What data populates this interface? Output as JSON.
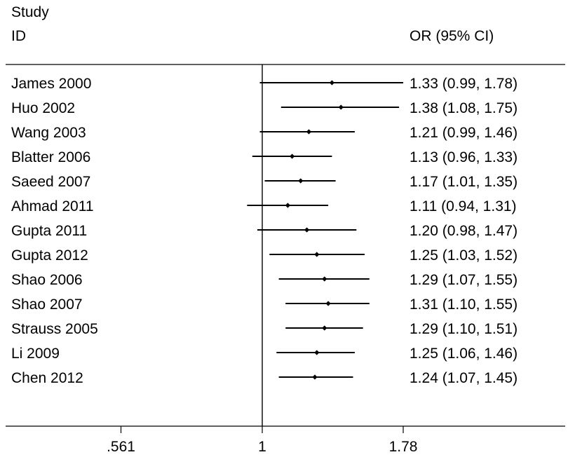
{
  "header": {
    "col1_line1": "Study",
    "col1_line2": "ID",
    "col2": "OR (95% CI)"
  },
  "chart_data": {
    "type": "forest",
    "x_scale": "log",
    "null_line": 1,
    "x_ticks": [
      0.561,
      1,
      1.78
    ],
    "x_tick_labels": [
      ".561",
      "1",
      "1.78"
    ],
    "studies": [
      {
        "id": "James 2000",
        "or": 1.33,
        "lo": 0.99,
        "hi": 1.78,
        "label": "1.33 (0.99, 1.78)"
      },
      {
        "id": "Huo 2002",
        "or": 1.38,
        "lo": 1.08,
        "hi": 1.75,
        "label": "1.38 (1.08, 1.75)"
      },
      {
        "id": "Wang 2003",
        "or": 1.21,
        "lo": 0.99,
        "hi": 1.46,
        "label": "1.21 (0.99, 1.46)"
      },
      {
        "id": "Blatter 2006",
        "or": 1.13,
        "lo": 0.96,
        "hi": 1.33,
        "label": "1.13 (0.96, 1.33)"
      },
      {
        "id": "Saeed 2007",
        "or": 1.17,
        "lo": 1.01,
        "hi": 1.35,
        "label": "1.17 (1.01, 1.35)"
      },
      {
        "id": "Ahmad 2011",
        "or": 1.11,
        "lo": 0.94,
        "hi": 1.31,
        "label": "1.11 (0.94, 1.31)"
      },
      {
        "id": "Gupta 2011",
        "or": 1.2,
        "lo": 0.98,
        "hi": 1.47,
        "label": "1.20 (0.98, 1.47)"
      },
      {
        "id": "Gupta 2012",
        "or": 1.25,
        "lo": 1.03,
        "hi": 1.52,
        "label": "1.25 (1.03, 1.52)"
      },
      {
        "id": "Shao 2006",
        "or": 1.29,
        "lo": 1.07,
        "hi": 1.55,
        "label": "1.29 (1.07, 1.55)"
      },
      {
        "id": "Shao 2007",
        "or": 1.31,
        "lo": 1.1,
        "hi": 1.55,
        "label": "1.31 (1.10, 1.55)"
      },
      {
        "id": "Strauss 2005",
        "or": 1.29,
        "lo": 1.1,
        "hi": 1.51,
        "label": "1.29 (1.10, 1.51)"
      },
      {
        "id": "Li 2009",
        "or": 1.25,
        "lo": 1.06,
        "hi": 1.46,
        "label": "1.25 (1.06, 1.46)"
      },
      {
        "id": "Chen 2012",
        "or": 1.24,
        "lo": 1.07,
        "hi": 1.45,
        "label": "1.24 (1.07, 1.45)"
      }
    ]
  }
}
